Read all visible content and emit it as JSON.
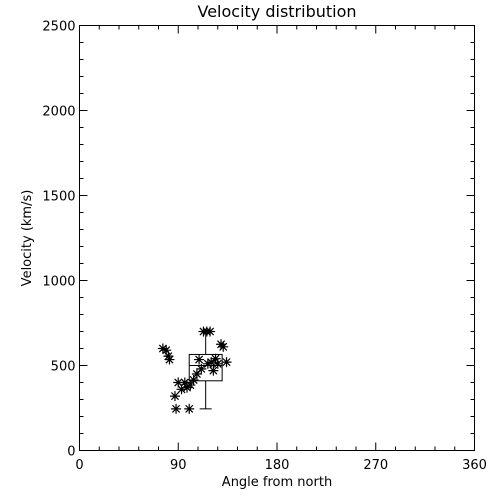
{
  "chart_data": {
    "type": "scatter",
    "title": "Velocity distribution",
    "xlabel": "Angle from north",
    "ylabel": "Velocity (km/s)",
    "xlim": [
      0,
      360
    ],
    "ylim": [
      0,
      2500
    ],
    "xticks": [
      0,
      90,
      180,
      270,
      360
    ],
    "yticks": [
      0,
      500,
      1000,
      1500,
      2000,
      2500
    ],
    "grid": false,
    "marker": "asterisk",
    "points": [
      {
        "x": 76,
        "y": 600
      },
      {
        "x": 79,
        "y": 590
      },
      {
        "x": 81,
        "y": 555
      },
      {
        "x": 82,
        "y": 535
      },
      {
        "x": 87,
        "y": 320
      },
      {
        "x": 90,
        "y": 400
      },
      {
        "x": 88,
        "y": 245
      },
      {
        "x": 93,
        "y": 360
      },
      {
        "x": 96,
        "y": 400
      },
      {
        "x": 98,
        "y": 370
      },
      {
        "x": 100,
        "y": 245
      },
      {
        "x": 101,
        "y": 385
      },
      {
        "x": 104,
        "y": 415
      },
      {
        "x": 107,
        "y": 450
      },
      {
        "x": 109,
        "y": 535
      },
      {
        "x": 111,
        "y": 480
      },
      {
        "x": 113,
        "y": 700
      },
      {
        "x": 116,
        "y": 700
      },
      {
        "x": 117,
        "y": 510
      },
      {
        "x": 119,
        "y": 700
      },
      {
        "x": 120,
        "y": 520
      },
      {
        "x": 122,
        "y": 470
      },
      {
        "x": 124,
        "y": 540
      },
      {
        "x": 126,
        "y": 510
      },
      {
        "x": 129,
        "y": 625
      },
      {
        "x": 131,
        "y": 610
      },
      {
        "x": 134,
        "y": 520
      }
    ],
    "boxplot": {
      "x_left": 100,
      "x_right": 130,
      "whisker_low": 245,
      "q1": 410,
      "median": 500,
      "q3": 565,
      "whisker_high": 700
    }
  }
}
